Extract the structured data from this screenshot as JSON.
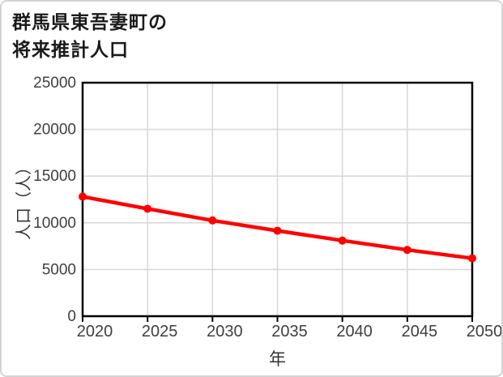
{
  "title": {
    "line1": "群馬県東吾妻町の",
    "line2": "将来推計人口"
  },
  "chart_data": {
    "type": "line",
    "title": "群馬県東吾妻町の将来推計人口",
    "x": [
      2020,
      2025,
      2030,
      2035,
      2040,
      2045,
      2050
    ],
    "values": [
      12800,
      11500,
      10250,
      9150,
      8100,
      7100,
      6200
    ],
    "xlabel": "年",
    "ylabel": "人口（人）",
    "xlim": [
      2020,
      2050
    ],
    "ylim": [
      0,
      25000
    ],
    "xticks": [
      2020,
      2025,
      2030,
      2035,
      2040,
      2045,
      2050
    ],
    "yticks": [
      0,
      5000,
      10000,
      15000,
      20000,
      25000
    ],
    "grid": true,
    "legend": false,
    "marker": "circle"
  },
  "colors": {
    "line": "#ff0000",
    "grid": "#d9d9d9",
    "axis": "#000000",
    "tick_label": "#3f3f3f",
    "axis_title": "#333333",
    "title": "#1a1a1a",
    "card_border": "#d4d4d4"
  }
}
